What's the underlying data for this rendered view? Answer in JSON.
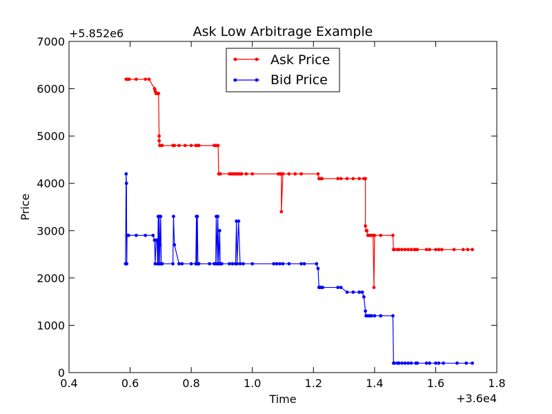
{
  "chart_data": {
    "type": "line",
    "title": "Ask Low Arbitrage Example",
    "xlabel": "Time",
    "ylabel": "Price",
    "x_offset_label": "+3.6e4",
    "y_offset_label": "+5.852e6",
    "xlim": [
      0.4,
      1.8
    ],
    "ylim": [
      0,
      7000
    ],
    "xticks": [
      "0.4",
      "0.6",
      "0.8",
      "1.0",
      "1.2",
      "1.4",
      "1.6",
      "1.8"
    ],
    "yticks": [
      "0",
      "1000",
      "2000",
      "3000",
      "4000",
      "5000",
      "6000",
      "7000"
    ],
    "grid": false,
    "legend_position": "upper-center",
    "series": [
      {
        "name": "Ask Price",
        "color": "#ff0000",
        "x": [
          0.587,
          0.59,
          0.593,
          0.597,
          0.62,
          0.65,
          0.662,
          0.68,
          0.682,
          0.685,
          0.688,
          0.69,
          0.693,
          0.695,
          0.695,
          0.697,
          0.7,
          0.705,
          0.74,
          0.742,
          0.745,
          0.76,
          0.78,
          0.8,
          0.815,
          0.817,
          0.82,
          0.823,
          0.825,
          0.875,
          0.88,
          0.885,
          0.888,
          0.89,
          0.892,
          0.895,
          0.925,
          0.93,
          0.935,
          0.94,
          0.945,
          0.95,
          0.955,
          0.96,
          0.965,
          0.98,
          1.0,
          1.085,
          1.09,
          1.092,
          1.095,
          1.095,
          1.1,
          1.12,
          1.14,
          1.16,
          1.215,
          1.218,
          1.22,
          1.225,
          1.228,
          1.28,
          1.29,
          1.31,
          1.33,
          1.35,
          1.365,
          1.37,
          1.37,
          1.373,
          1.375,
          1.378,
          1.38,
          1.385,
          1.39,
          1.395,
          1.398,
          1.4,
          1.42,
          1.46,
          1.462,
          1.465,
          1.475,
          1.48,
          1.49,
          1.5,
          1.51,
          1.52,
          1.53,
          1.535,
          1.54,
          1.57,
          1.58,
          1.6,
          1.61,
          1.62,
          1.66,
          1.69,
          1.705,
          1.72
        ],
        "y": [
          6200,
          6200,
          6200,
          6200,
          6200,
          6200,
          6200,
          6000,
          5950,
          5900,
          5900,
          5900,
          5900,
          5000,
          4900,
          4800,
          4800,
          4800,
          4800,
          4800,
          4800,
          4800,
          4800,
          4800,
          4800,
          4800,
          4800,
          4800,
          4800,
          4800,
          4800,
          4800,
          4800,
          4200,
          4200,
          4200,
          4200,
          4200,
          4200,
          4200,
          4200,
          4200,
          4200,
          4200,
          4200,
          4200,
          4200,
          4200,
          4200,
          4200,
          4200,
          3400,
          4200,
          4200,
          4200,
          4200,
          4200,
          4100,
          4100,
          4100,
          4100,
          4100,
          4100,
          4100,
          4100,
          4100,
          4100,
          4100,
          3100,
          3000,
          3000,
          2900,
          2900,
          2900,
          2900,
          2900,
          1800,
          2900,
          2900,
          2900,
          2600,
          2600,
          2600,
          2600,
          2600,
          2600,
          2600,
          2600,
          2600,
          2600,
          2600,
          2600,
          2600,
          2600,
          2600,
          2600,
          2600,
          2600,
          2600,
          2600
        ]
      },
      {
        "name": "Bid Price",
        "color": "#0000ff",
        "x": [
          0.585,
          0.587,
          0.588,
          0.589,
          0.59,
          0.592,
          0.595,
          0.62,
          0.65,
          0.675,
          0.68,
          0.682,
          0.685,
          0.688,
          0.69,
          0.692,
          0.693,
          0.695,
          0.697,
          0.698,
          0.7,
          0.702,
          0.705,
          0.74,
          0.742,
          0.745,
          0.76,
          0.77,
          0.8,
          0.815,
          0.817,
          0.818,
          0.82,
          0.822,
          0.825,
          0.86,
          0.875,
          0.88,
          0.882,
          0.885,
          0.887,
          0.89,
          0.893,
          0.895,
          0.9,
          0.925,
          0.935,
          0.945,
          0.948,
          0.95,
          0.955,
          0.96,
          0.97,
          1.0,
          1.07,
          1.08,
          1.09,
          1.1,
          1.12,
          1.16,
          1.17,
          1.21,
          1.215,
          1.218,
          1.22,
          1.225,
          1.23,
          1.28,
          1.29,
          1.31,
          1.33,
          1.35,
          1.36,
          1.365,
          1.37,
          1.372,
          1.375,
          1.38,
          1.385,
          1.39,
          1.4,
          1.42,
          1.46,
          1.462,
          1.465,
          1.475,
          1.48,
          1.49,
          1.5,
          1.51,
          1.52,
          1.535,
          1.54,
          1.57,
          1.58,
          1.6,
          1.61,
          1.625,
          1.67,
          1.7,
          1.72
        ],
        "y": [
          2300,
          4200,
          4000,
          2300,
          2900,
          2900,
          2900,
          2900,
          2900,
          2900,
          2800,
          2300,
          2800,
          2800,
          2300,
          3300,
          2300,
          3300,
          2300,
          2700,
          3300,
          2300,
          2300,
          2300,
          3300,
          2700,
          2300,
          2300,
          2300,
          2300,
          3300,
          2300,
          3300,
          2300,
          2300,
          2300,
          2300,
          2300,
          3300,
          2300,
          3300,
          2300,
          3000,
          2300,
          2300,
          2300,
          2300,
          2300,
          3200,
          2300,
          3200,
          2300,
          2300,
          2300,
          2300,
          2300,
          2300,
          2300,
          2300,
          2300,
          2300,
          2300,
          2200,
          1800,
          1800,
          1800,
          1800,
          1800,
          1800,
          1700,
          1700,
          1700,
          1700,
          1600,
          1300,
          1200,
          1200,
          1200,
          1200,
          1200,
          1200,
          1200,
          1200,
          200,
          200,
          200,
          200,
          200,
          200,
          200,
          200,
          200,
          200,
          200,
          200,
          200,
          200,
          200,
          200,
          200,
          200
        ]
      }
    ]
  }
}
